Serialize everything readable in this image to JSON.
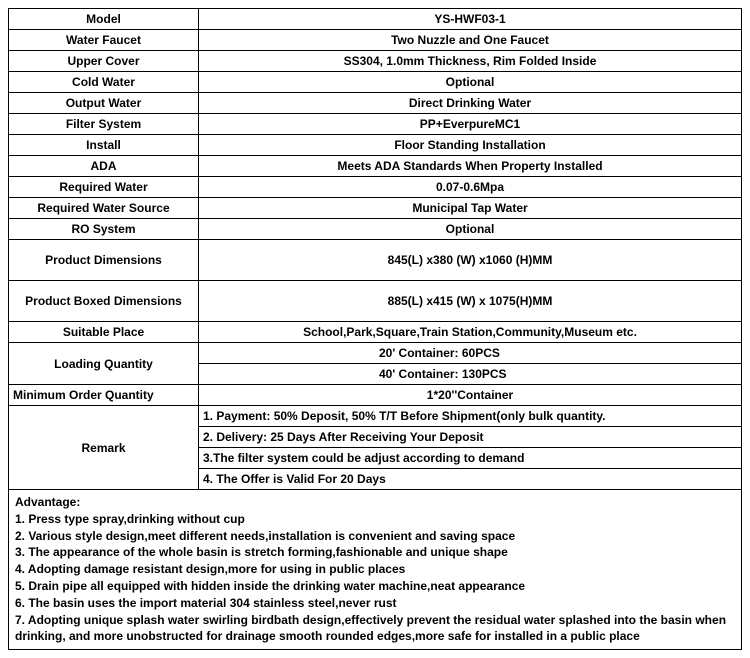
{
  "spec": {
    "rows": [
      {
        "label": "Model",
        "value": "YS-HWF03-1"
      },
      {
        "label": "Water Faucet",
        "value": "Two Nuzzle and One Faucet"
      },
      {
        "label": "Upper Cover",
        "value": "SS304, 1.0mm Thickness, Rim Folded Inside"
      },
      {
        "label": "Cold Water",
        "value": "Optional"
      },
      {
        "label": "Output Water",
        "value": "Direct Drinking Water"
      },
      {
        "label": "Filter System",
        "value": "PP+EverpureMC1"
      },
      {
        "label": "Install",
        "value": "Floor Standing Installation"
      },
      {
        "label": "ADA",
        "value": "Meets ADA Standards When Property Installed"
      },
      {
        "label": "Required Water",
        "value": "0.07-0.6Mpa"
      },
      {
        "label": "Required Water Source",
        "value": "Municipal Tap Water"
      },
      {
        "label": "RO System",
        "value": "Optional"
      },
      {
        "label": "Product Dimensions",
        "value": "845(L) x380 (W) x1060 (H)MM",
        "tall": true
      },
      {
        "label": "Product Boxed Dimensions",
        "value": "885(L) x415 (W) x 1075(H)MM",
        "tall": true
      },
      {
        "label": "Suitable Place",
        "value": "School,Park,Square,Train Station,Community,Museum etc."
      }
    ],
    "loading": {
      "label": "Loading Quantity",
      "v1": "20' Container:  60PCS",
      "v2": "40' Container:  130PCS"
    },
    "minorder": {
      "label": "Minimum Order Quantity",
      "value": "1*20''Container"
    },
    "remark": {
      "label": "Remark",
      "lines": [
        "1. Payment: 50% Deposit, 50% T/T Before Shipment(only bulk quantity.",
        "2. Delivery: 25 Days After Receiving Your Deposit",
        "3.The filter system could be adjust according to demand",
        "4.  The Offer is Valid For 20 Days"
      ]
    }
  },
  "advantage": {
    "title": "Advantage:",
    "lines": [
      "1.  Press type spray,drinking without cup",
      "2.  Various style design,meet different needs,installation is convenient and saving space",
      "3.  The appearance of the whole basin is stretch forming,fashionable and unique shape",
      "4.  Adopting damage resistant design,more for using in public places",
      "5.  Drain pipe all equipped with hidden inside the drinking water machine,neat appearance",
      "6.  The basin uses the import material 304 stainless steel,never rust",
      "7.  Adopting unique splash water swirling birdbath design,effectively prevent the residual water splashed into the basin when drinking, and more unobstructed for drainage smooth rounded edges,more safe for installed in a public place"
    ]
  },
  "style": {
    "border_color": "#000000",
    "background_color": "#ffffff",
    "text_color": "#000000",
    "font_size": 12,
    "font_weight": "bold",
    "label_col_width": 190
  }
}
